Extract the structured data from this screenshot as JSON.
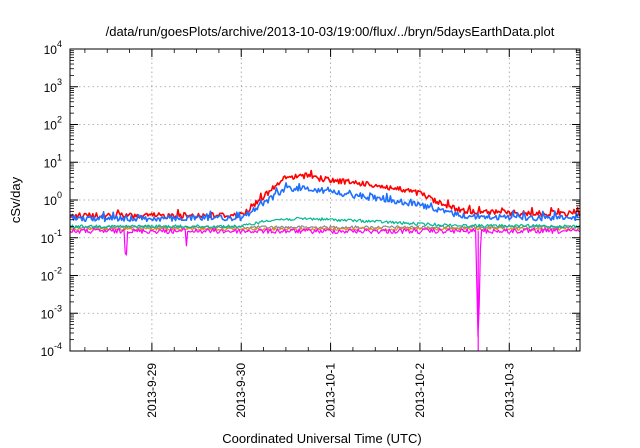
{
  "chart_data": {
    "type": "line",
    "title": "/data/run/goesPlots/archive/2013-10-03/19:00/flux/../bryn/5daysEarthData.plot",
    "xlabel": "Coordinated Universal Time (UTC)",
    "ylabel": "cSv/day",
    "y_scale": "log",
    "ylim": [
      0.0001,
      10000
    ],
    "xlim": [
      "2013-09-28 02:00",
      "2013-10-03 19:00"
    ],
    "grid": true,
    "legend": "none",
    "x_ticks": [
      "2013-9-29",
      "2013-9-30",
      "2013-10-1",
      "2013-10-2",
      "2013-10-3"
    ],
    "y_ticks": [
      {
        "base": "10",
        "exp": "-4"
      },
      {
        "base": "10",
        "exp": "-3"
      },
      {
        "base": "10",
        "exp": "-2"
      },
      {
        "base": "10",
        "exp": "-1"
      },
      {
        "base": "10",
        "exp": "0"
      },
      {
        "base": "10",
        "exp": "1"
      },
      {
        "base": "10",
        "exp": "2"
      },
      {
        "base": "10",
        "exp": "3"
      },
      {
        "base": "10",
        "exp": "4"
      }
    ],
    "series": [
      {
        "color": "#ff0000",
        "x": [
          "2013-09-28 02:00",
          "2013-09-29 00:00",
          "2013-09-30 00:00",
          "2013-09-30 06:00",
          "2013-09-30 12:00",
          "2013-09-30 18:00",
          "2013-10-01 00:00",
          "2013-10-01 12:00",
          "2013-10-02 00:00",
          "2013-10-02 06:00",
          "2013-10-02 12:00",
          "2013-10-03 00:00",
          "2013-10-03 19:00"
        ],
        "y": [
          0.38,
          0.38,
          0.4,
          1.2,
          4.0,
          4.2,
          3.3,
          2.5,
          1.5,
          0.75,
          0.5,
          0.45,
          0.42
        ]
      },
      {
        "color": "#1f6fff",
        "x": [
          "2013-09-28 02:00",
          "2013-09-29 00:00",
          "2013-09-30 00:00",
          "2013-09-30 06:00",
          "2013-09-30 12:00",
          "2013-09-30 18:00",
          "2013-10-01 00:00",
          "2013-10-01 12:00",
          "2013-10-02 00:00",
          "2013-10-02 06:00",
          "2013-10-02 12:00",
          "2013-10-03 00:00",
          "2013-10-03 19:00"
        ],
        "y": [
          0.32,
          0.32,
          0.33,
          0.8,
          2.0,
          2.0,
          1.6,
          1.1,
          0.75,
          0.5,
          0.38,
          0.34,
          0.33
        ]
      },
      {
        "color": "#00b890",
        "x": [
          "2013-09-28 02:00",
          "2013-09-30 00:00",
          "2013-09-30 08:00",
          "2013-09-30 18:00",
          "2013-10-01 12:00",
          "2013-10-02 00:00",
          "2013-10-02 12:00",
          "2013-10-03 19:00"
        ],
        "y": [
          0.2,
          0.2,
          0.3,
          0.32,
          0.27,
          0.23,
          0.21,
          0.2
        ]
      },
      {
        "color": "#888888",
        "x": [
          "2013-09-28 02:00",
          "2013-10-03 19:00"
        ],
        "y": [
          0.19,
          0.19
        ]
      },
      {
        "color": "#d98c1a",
        "x": [
          "2013-09-28 02:00",
          "2013-10-03 19:00"
        ],
        "y": [
          0.17,
          0.17
        ]
      },
      {
        "color": "#ff00ff",
        "x": [
          "2013-09-28 02:00",
          "2013-10-02 15:00",
          "2013-10-02 15:40",
          "2013-10-02 16:20",
          "2013-10-03 19:00"
        ],
        "y": [
          0.15,
          0.15,
          0.0001,
          0.15,
          0.15
        ]
      }
    ]
  }
}
